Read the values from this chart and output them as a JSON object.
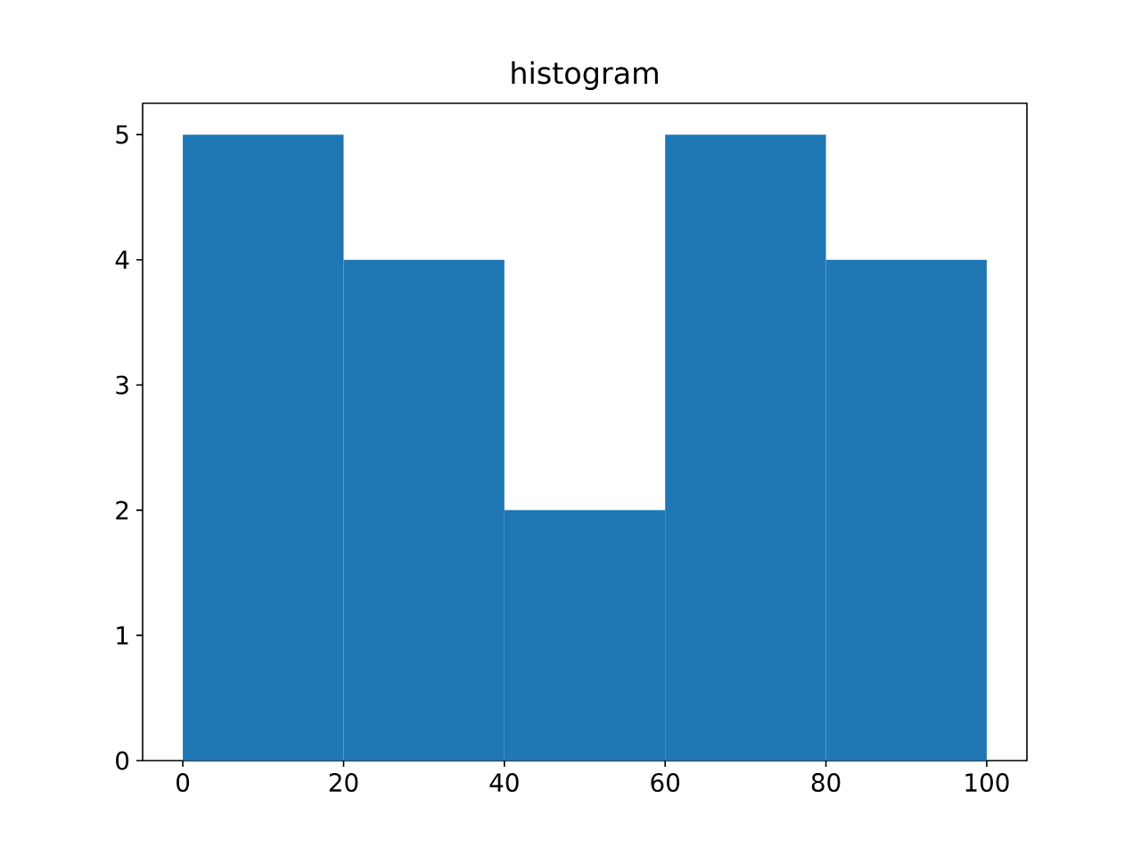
{
  "chart_data": {
    "type": "histogram",
    "title": "histogram",
    "bins": [
      0,
      20,
      40,
      60,
      80,
      100
    ],
    "values": [
      5,
      4,
      2,
      5,
      4
    ],
    "color": "#1f77b4",
    "xlim": [
      -5,
      105
    ],
    "ylim": [
      0,
      5.25
    ],
    "xticks": [
      0,
      20,
      40,
      60,
      80,
      100
    ],
    "yticks": [
      0,
      1,
      2,
      3,
      4,
      5
    ]
  }
}
